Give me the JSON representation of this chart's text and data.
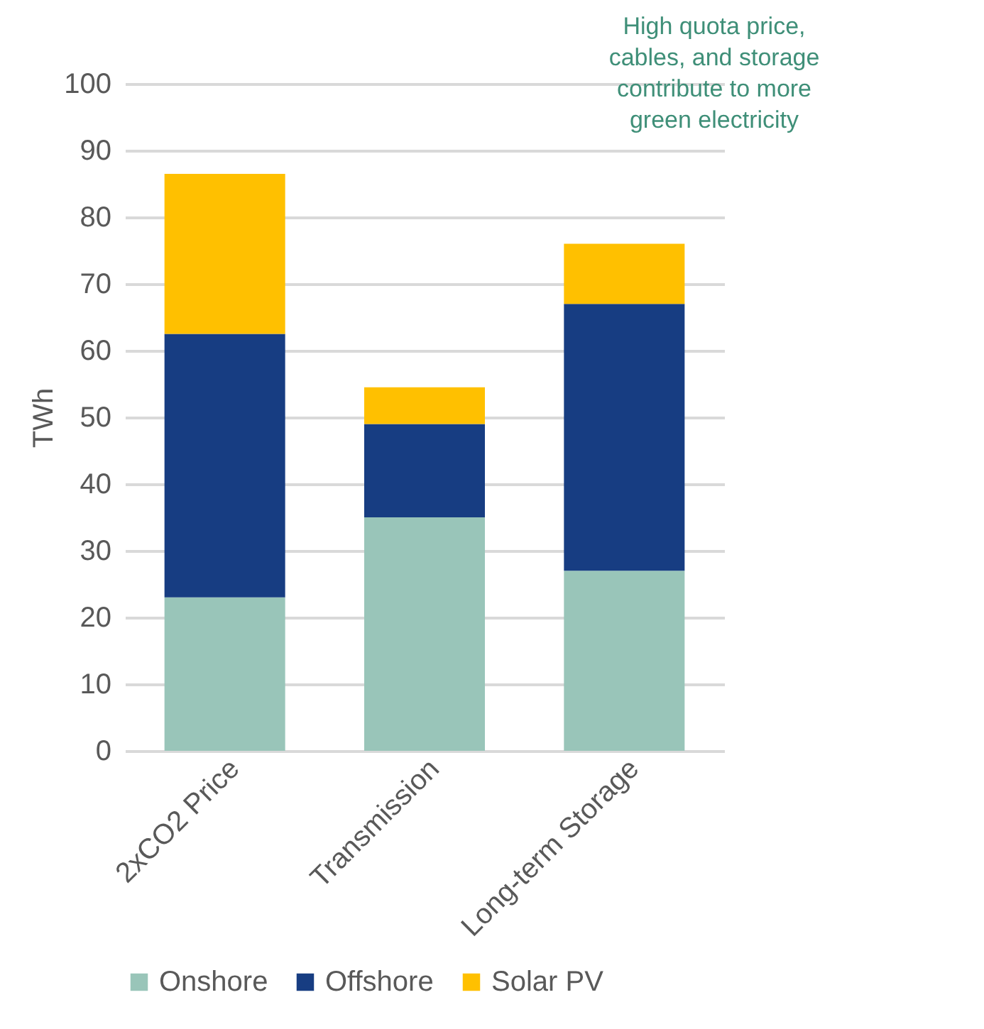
{
  "chart_data": {
    "type": "bar",
    "stacked": true,
    "ylabel": "TWh",
    "categories": [
      "2xCO2 Price",
      "Transmission",
      "Long-term Storage"
    ],
    "series": [
      {
        "name": "Onshore",
        "color": "#99c5b9",
        "values": [
          23,
          35,
          27
        ]
      },
      {
        "name": "Offshore",
        "color": "#173d82",
        "values": [
          39.5,
          14,
          40
        ]
      },
      {
        "name": "Solar PV",
        "color": "#ffc000",
        "values": [
          24,
          5.5,
          9
        ]
      }
    ],
    "ylim": [
      0,
      100
    ],
    "yticks": [
      0,
      10,
      20,
      30,
      40,
      50,
      60,
      70,
      80,
      90,
      100
    ],
    "grid": "y",
    "legend": "bottom",
    "annotations": [
      "High quota price,\ncables, and storage\ncontribute to more\ngreen electricity"
    ]
  }
}
